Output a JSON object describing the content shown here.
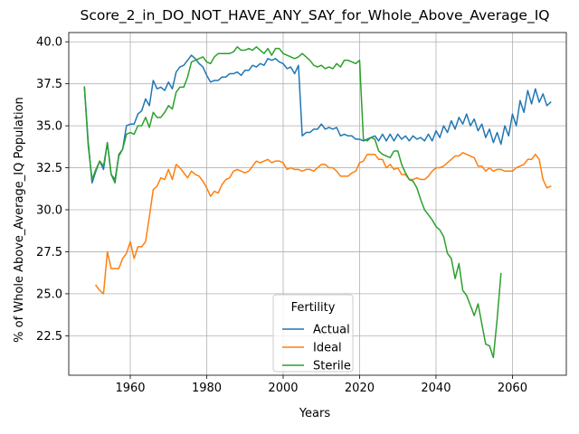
{
  "chart_data": {
    "type": "line",
    "title": "Score_2_in_DO_NOT_HAVE_ANY_SAY_for_Whole_Above_Average_IQ",
    "xlabel": "Years",
    "ylabel": "% of Whole Above_Average_IQ Population",
    "xlim": [
      1943.9,
      2074.1
    ],
    "ylim": [
      20.15,
      40.55
    ],
    "xticks": [
      1960,
      1980,
      2000,
      2020,
      2040,
      2060
    ],
    "yticks": [
      22.5,
      25.0,
      27.5,
      30.0,
      32.5,
      35.0,
      37.5,
      40.0
    ],
    "ytick_labels": [
      "22.5",
      "25.0",
      "27.5",
      "30.0",
      "32.5",
      "35.0",
      "37.5",
      "40.0"
    ],
    "grid": true,
    "legend": {
      "title": "Fertility",
      "placement": "lower-center"
    },
    "series": [
      {
        "name": "Actual",
        "color": "#1f77b4",
        "x": [
          1948,
          1949,
          1950,
          1951,
          1952,
          1953,
          1954,
          1955,
          1956,
          1957,
          1958,
          1959,
          1960,
          1961,
          1962,
          1963,
          1964,
          1965,
          1966,
          1967,
          1968,
          1969,
          1970,
          1971,
          1972,
          1973,
          1974,
          1975,
          1976,
          1977,
          1978,
          1979,
          1980,
          1981,
          1982,
          1983,
          1984,
          1985,
          1986,
          1987,
          1988,
          1989,
          1990,
          1991,
          1992,
          1993,
          1994,
          1995,
          1996,
          1997,
          1998,
          1999,
          2000,
          2001,
          2002,
          2003,
          2004,
          2005,
          2006,
          2007,
          2008,
          2009,
          2010,
          2011,
          2012,
          2013,
          2014,
          2015,
          2016,
          2017,
          2018,
          2019,
          2020,
          2021,
          2022,
          2023,
          2024,
          2025,
          2026,
          2027,
          2028,
          2029,
          2030,
          2031,
          2032,
          2033,
          2034,
          2035,
          2036,
          2037,
          2038,
          2039,
          2040,
          2041,
          2042,
          2043,
          2044,
          2045,
          2046,
          2047,
          2048,
          2049,
          2050,
          2051,
          2052,
          2053,
          2054,
          2055,
          2056,
          2057,
          2058,
          2059,
          2060,
          2061,
          2062,
          2063,
          2064,
          2065,
          2066,
          2067,
          2068,
          2069,
          2070
        ],
        "values": [
          37.3,
          34.0,
          31.6,
          32.3,
          32.9,
          32.4,
          34.0,
          32.1,
          31.8,
          33.2,
          33.6,
          35.0,
          35.1,
          35.1,
          35.7,
          35.9,
          36.6,
          36.2,
          37.7,
          37.2,
          37.3,
          37.1,
          37.6,
          37.2,
          38.2,
          38.5,
          38.6,
          38.9,
          39.2,
          39.0,
          38.7,
          38.5,
          38.0,
          37.6,
          37.7,
          37.7,
          37.9,
          37.9,
          38.1,
          38.1,
          38.2,
          38.0,
          38.3,
          38.3,
          38.6,
          38.5,
          38.7,
          38.6,
          39.0,
          38.9,
          39.0,
          38.8,
          38.7,
          38.4,
          38.5,
          38.1,
          38.6,
          34.4,
          34.6,
          34.6,
          34.8,
          34.8,
          35.1,
          34.8,
          34.9,
          34.8,
          34.9,
          34.4,
          34.5,
          34.4,
          34.4,
          34.2,
          34.2,
          34.1,
          34.2,
          34.3,
          34.4,
          34.1,
          34.5,
          34.1,
          34.5,
          34.1,
          34.5,
          34.2,
          34.4,
          34.1,
          34.4,
          34.2,
          34.3,
          34.1,
          34.5,
          34.1,
          34.7,
          34.3,
          35.0,
          34.6,
          35.3,
          34.8,
          35.5,
          35.1,
          35.7,
          35.0,
          35.4,
          34.7,
          35.1,
          34.3,
          34.8,
          34.0,
          34.6,
          33.9,
          35.0,
          34.4,
          35.7,
          35.0,
          36.5,
          35.8,
          37.1,
          36.3,
          37.2,
          36.4,
          36.9,
          36.2,
          36.4
        ]
      },
      {
        "name": "Ideal",
        "color": "#ff7f0e",
        "x": [
          1951,
          1952,
          1953,
          1954,
          1955,
          1956,
          1957,
          1958,
          1959,
          1960,
          1961,
          1962,
          1963,
          1964,
          1965,
          1966,
          1967,
          1968,
          1969,
          1970,
          1971,
          1972,
          1973,
          1974,
          1975,
          1976,
          1977,
          1978,
          1979,
          1980,
          1981,
          1982,
          1983,
          1984,
          1985,
          1986,
          1987,
          1988,
          1989,
          1990,
          1991,
          1992,
          1993,
          1994,
          1995,
          1996,
          1997,
          1998,
          1999,
          2000,
          2001,
          2002,
          2003,
          2004,
          2005,
          2006,
          2007,
          2008,
          2009,
          2010,
          2011,
          2012,
          2013,
          2014,
          2015,
          2016,
          2017,
          2018,
          2019,
          2020,
          2021,
          2022,
          2023,
          2024,
          2025,
          2026,
          2027,
          2028,
          2029,
          2030,
          2031,
          2032,
          2033,
          2034,
          2035,
          2036,
          2037,
          2038,
          2039,
          2040,
          2041,
          2042,
          2043,
          2044,
          2045,
          2046,
          2047,
          2048,
          2049,
          2050,
          2051,
          2052,
          2053,
          2054,
          2055,
          2056,
          2057,
          2058,
          2059,
          2060,
          2061,
          2062,
          2063,
          2064,
          2065,
          2066,
          2067,
          2068,
          2069,
          2070
        ],
        "values": [
          25.5,
          25.2,
          25.0,
          27.5,
          26.5,
          26.5,
          26.5,
          27.1,
          27.4,
          28.1,
          27.1,
          27.8,
          27.8,
          28.1,
          29.6,
          31.2,
          31.4,
          31.9,
          31.8,
          32.4,
          31.8,
          32.7,
          32.5,
          32.2,
          31.9,
          32.3,
          32.1,
          32.0,
          31.7,
          31.3,
          30.8,
          31.1,
          31.0,
          31.5,
          31.8,
          31.9,
          32.3,
          32.4,
          32.3,
          32.2,
          32.3,
          32.6,
          32.9,
          32.8,
          32.9,
          33.0,
          32.8,
          32.9,
          32.9,
          32.8,
          32.4,
          32.5,
          32.4,
          32.4,
          32.3,
          32.4,
          32.4,
          32.3,
          32.5,
          32.7,
          32.7,
          32.5,
          32.5,
          32.3,
          32.0,
          32.0,
          32.0,
          32.2,
          32.3,
          32.8,
          32.9,
          33.3,
          33.3,
          33.3,
          33.0,
          33.0,
          32.5,
          32.7,
          32.4,
          32.5,
          32.1,
          32.1,
          31.8,
          31.8,
          31.9,
          31.8,
          31.8,
          32.0,
          32.3,
          32.5,
          32.5,
          32.6,
          32.8,
          33.0,
          33.2,
          33.2,
          33.4,
          33.3,
          33.2,
          33.1,
          32.6,
          32.6,
          32.3,
          32.5,
          32.3,
          32.4,
          32.4,
          32.3,
          32.3,
          32.3,
          32.5,
          32.6,
          32.7,
          33.0,
          33.0,
          33.3,
          33.0,
          31.8,
          31.3,
          31.4
        ]
      },
      {
        "name": "Sterile",
        "color": "#2ca02c",
        "x": [
          1948,
          1949,
          1950,
          1951,
          1952,
          1953,
          1954,
          1955,
          1956,
          1957,
          1958,
          1959,
          1960,
          1961,
          1962,
          1963,
          1964,
          1965,
          1966,
          1967,
          1968,
          1969,
          1970,
          1971,
          1972,
          1973,
          1974,
          1975,
          1976,
          1977,
          1978,
          1979,
          1980,
          1981,
          1982,
          1983,
          1984,
          1985,
          1986,
          1987,
          1988,
          1989,
          1990,
          1991,
          1992,
          1993,
          1994,
          1995,
          1996,
          1997,
          1998,
          1999,
          2000,
          2001,
          2002,
          2003,
          2004,
          2005,
          2006,
          2007,
          2008,
          2009,
          2010,
          2011,
          2012,
          2013,
          2014,
          2015,
          2016,
          2017,
          2018,
          2019,
          2020,
          2021,
          2022,
          2023,
          2024,
          2025,
          2026,
          2027,
          2028,
          2029,
          2030,
          2031,
          2032,
          2033,
          2034,
          2035,
          2036,
          2037,
          2038,
          2039,
          2040,
          2041,
          2042,
          2043,
          2044,
          2045,
          2046,
          2047,
          2048,
          2049,
          2050,
          2051,
          2052,
          2053,
          2054,
          2055,
          2056,
          2057
        ],
        "values": [
          37.3,
          33.8,
          31.8,
          32.4,
          32.9,
          32.6,
          34.0,
          32.1,
          31.6,
          33.3,
          33.6,
          34.5,
          34.6,
          34.5,
          35.0,
          35.0,
          35.5,
          34.9,
          35.8,
          35.5,
          35.5,
          35.8,
          36.2,
          36.0,
          37.0,
          37.3,
          37.3,
          37.9,
          38.8,
          38.9,
          39.0,
          39.1,
          38.8,
          38.7,
          39.1,
          39.3,
          39.3,
          39.3,
          39.3,
          39.4,
          39.7,
          39.5,
          39.5,
          39.6,
          39.5,
          39.7,
          39.5,
          39.3,
          39.6,
          39.2,
          39.6,
          39.6,
          39.3,
          39.2,
          39.1,
          39.0,
          39.1,
          39.3,
          39.1,
          38.9,
          38.6,
          38.5,
          38.6,
          38.4,
          38.5,
          38.4,
          38.7,
          38.5,
          38.9,
          38.9,
          38.8,
          38.7,
          38.9,
          34.2,
          34.1,
          34.3,
          34.2,
          33.5,
          33.3,
          33.2,
          33.1,
          33.5,
          33.5,
          32.7,
          32.2,
          31.8,
          31.7,
          31.3,
          30.6,
          30.0,
          29.7,
          29.4,
          29.0,
          28.8,
          28.4,
          27.4,
          27.1,
          25.9,
          26.8,
          25.2,
          24.9,
          24.3,
          23.7,
          24.4,
          23.2,
          22.0,
          21.9,
          21.2,
          23.5,
          26.2
        ]
      }
    ]
  }
}
